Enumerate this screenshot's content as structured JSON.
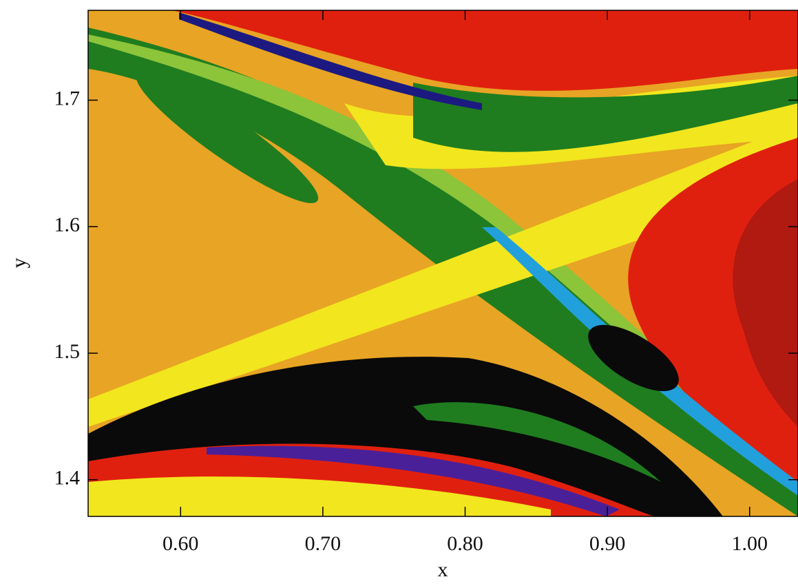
{
  "chart_data": {
    "type": "image",
    "x_label": "x",
    "y_label": "y",
    "xlim": [
      0.535,
      1.034
    ],
    "ylim": [
      1.371,
      1.771
    ],
    "xticks": [
      {
        "value": 0.6,
        "label": "0.60"
      },
      {
        "value": 0.7,
        "label": "0.70"
      },
      {
        "value": 0.8,
        "label": "0.80"
      },
      {
        "value": 0.9,
        "label": "0.90"
      },
      {
        "value": 1.0,
        "label": "1.00"
      }
    ],
    "yticks": [
      1.4,
      1.5,
      1.6,
      1.7
    ]
  }
}
